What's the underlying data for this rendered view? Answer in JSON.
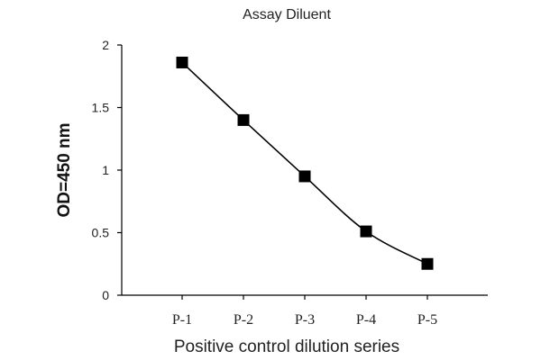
{
  "chart_data": {
    "type": "line",
    "title": "Assay Diluent",
    "xlabel": "Positive control dilution series",
    "ylabel": "OD=450 nm",
    "categories": [
      "P-1",
      "P-2",
      "P-3",
      "P-4",
      "P-5"
    ],
    "series": [
      {
        "values": [
          1.86,
          1.4,
          0.95,
          0.51,
          0.25
        ]
      }
    ],
    "ylim": [
      0,
      2
    ],
    "yticks": [
      0,
      0.5,
      1,
      1.5,
      2
    ],
    "ytick_labels": [
      "0",
      "0.5",
      "1",
      "1.5",
      "2"
    ],
    "grid": false,
    "marker": "square",
    "smooth": true,
    "color": "#000000"
  }
}
